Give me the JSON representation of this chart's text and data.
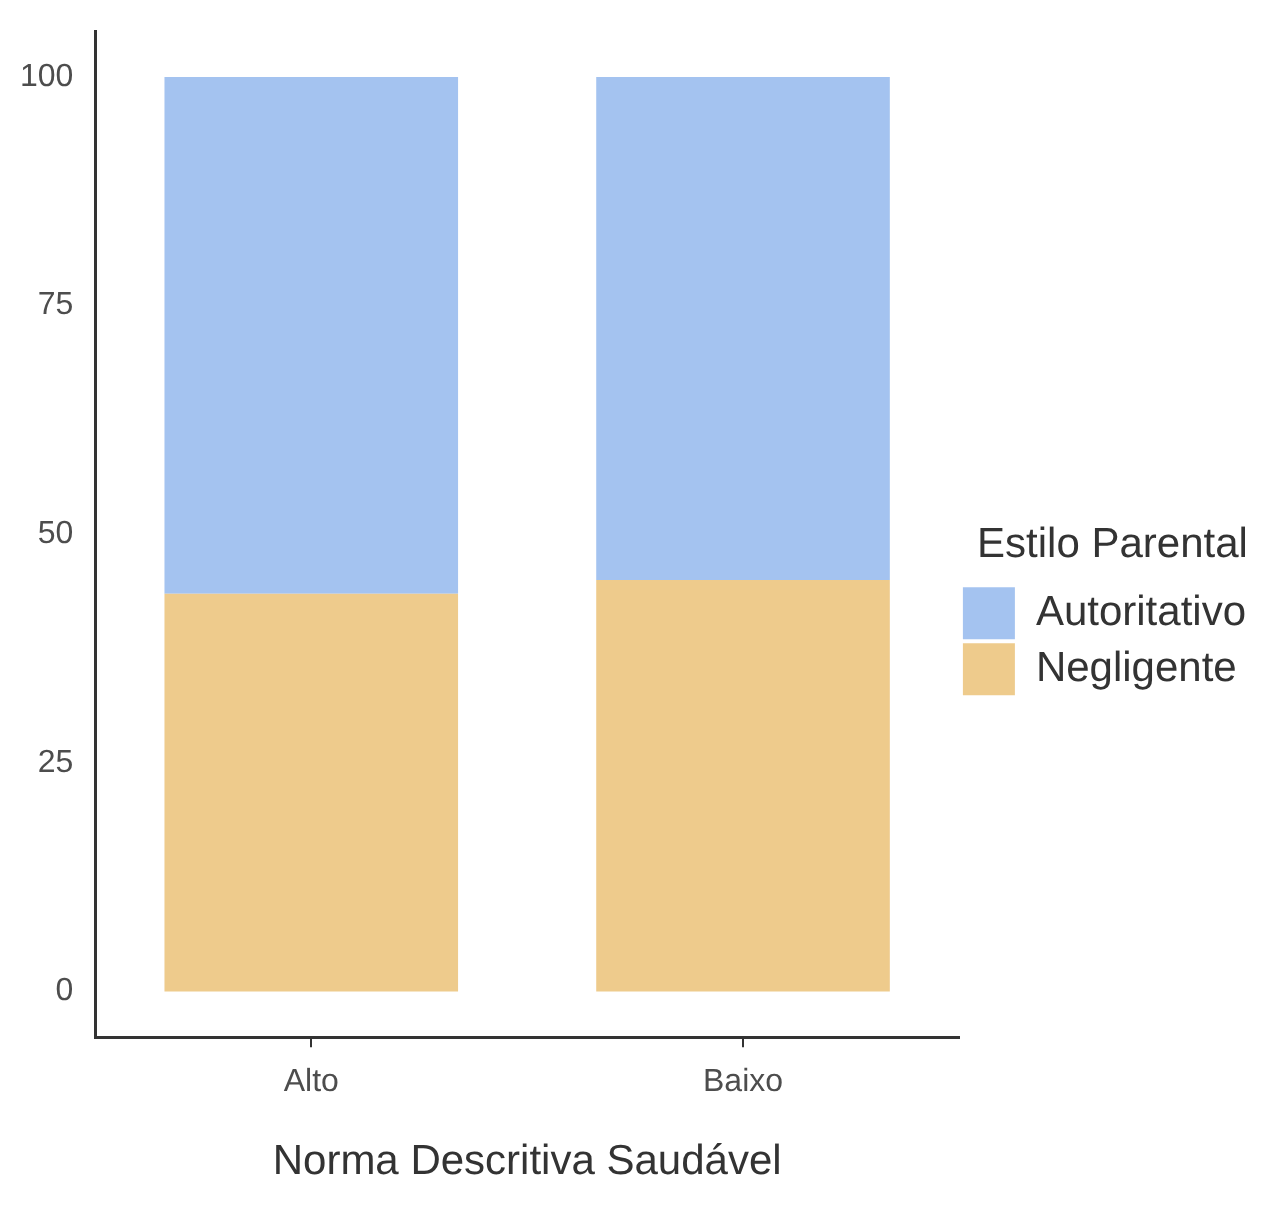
{
  "chart_data": {
    "type": "bar",
    "stacked": true,
    "xlabel": "Norma Descritiva Saudável",
    "legend_title": "Estilo Parental",
    "legend": "right",
    "grid": false,
    "categories": [
      "Alto",
      "Baixo"
    ],
    "series": [
      {
        "name": "Negligente",
        "color": "#eecb8c",
        "values": [
          43.5,
          45
        ]
      },
      {
        "name": "Autoritativo",
        "color": "#a4c3f0",
        "values": [
          56.5,
          55
        ]
      }
    ],
    "ylim": [
      -5,
      105
    ],
    "yticks": [
      0,
      25,
      50,
      75,
      100
    ]
  }
}
